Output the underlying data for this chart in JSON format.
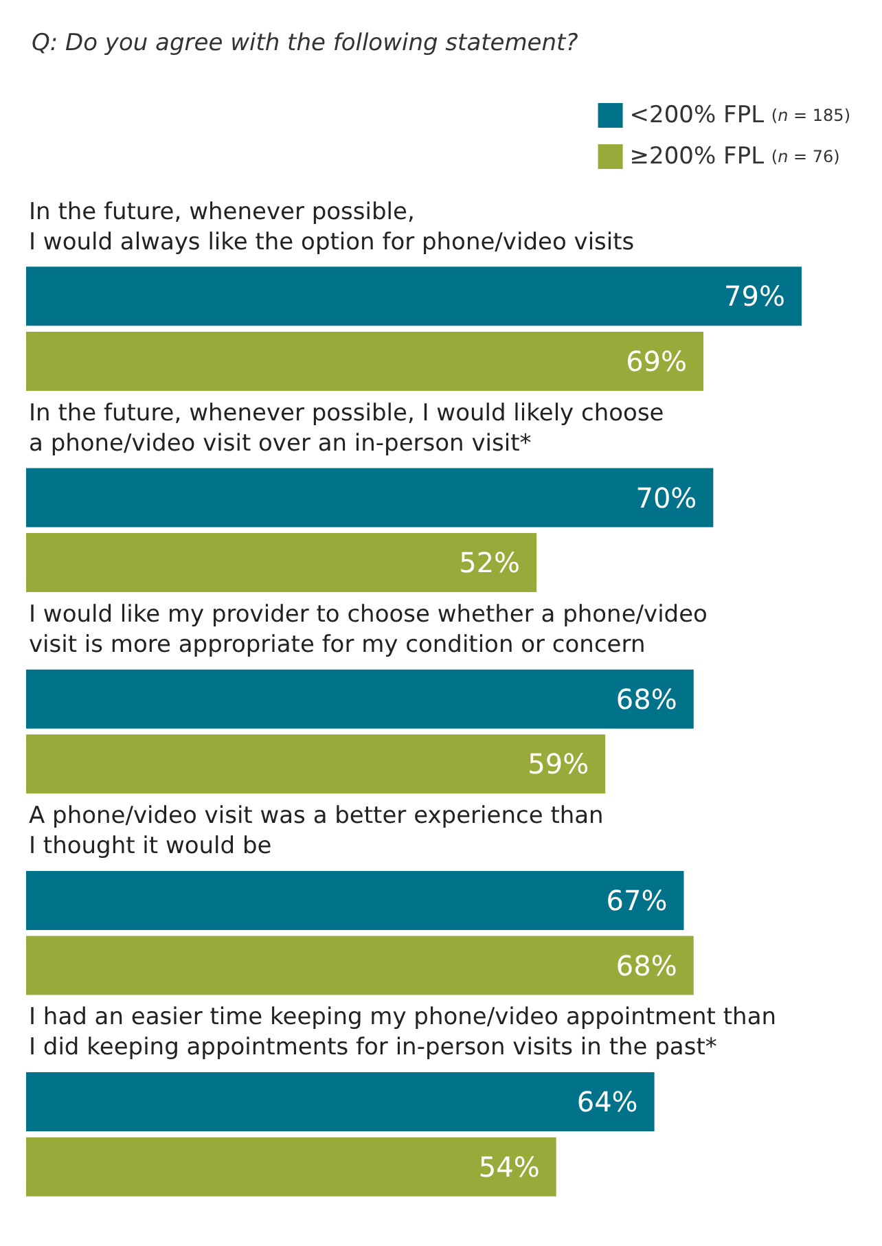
{
  "chart_data": {
    "type": "bar",
    "orientation": "horizontal",
    "title": "Q: Do you agree with the following statement?",
    "categories": [
      "In the future, whenever possible,\nI would always like the option for phone/video visits",
      "In the future, whenever possible, I would likely choose\na phone/video visit over an in-person visit*",
      "I would like my provider to choose whether a phone/video\nvisit is more appropriate for my condition or concern",
      "A phone/video visit was a better experience than\nI thought it would be",
      "I had an easier time keeping my phone/video appointment than\nI did keeping appointments for in-person visits in the past*"
    ],
    "series": [
      {
        "name": "<200% FPL (n = 185)",
        "color": "#00728a",
        "values": [
          79,
          70,
          68,
          67,
          64
        ],
        "value_labels": [
          "79%",
          "70%",
          "68%",
          "67%",
          "64%"
        ]
      },
      {
        "name": "≥200% FPL (n = 76)",
        "color": "#9aaa3a",
        "values": [
          69,
          52,
          59,
          68,
          54
        ],
        "value_labels": [
          "69%",
          "52%",
          "59%",
          "68%",
          "54%"
        ]
      }
    ],
    "legend": "top right",
    "tick_labels": "y"
  }
}
